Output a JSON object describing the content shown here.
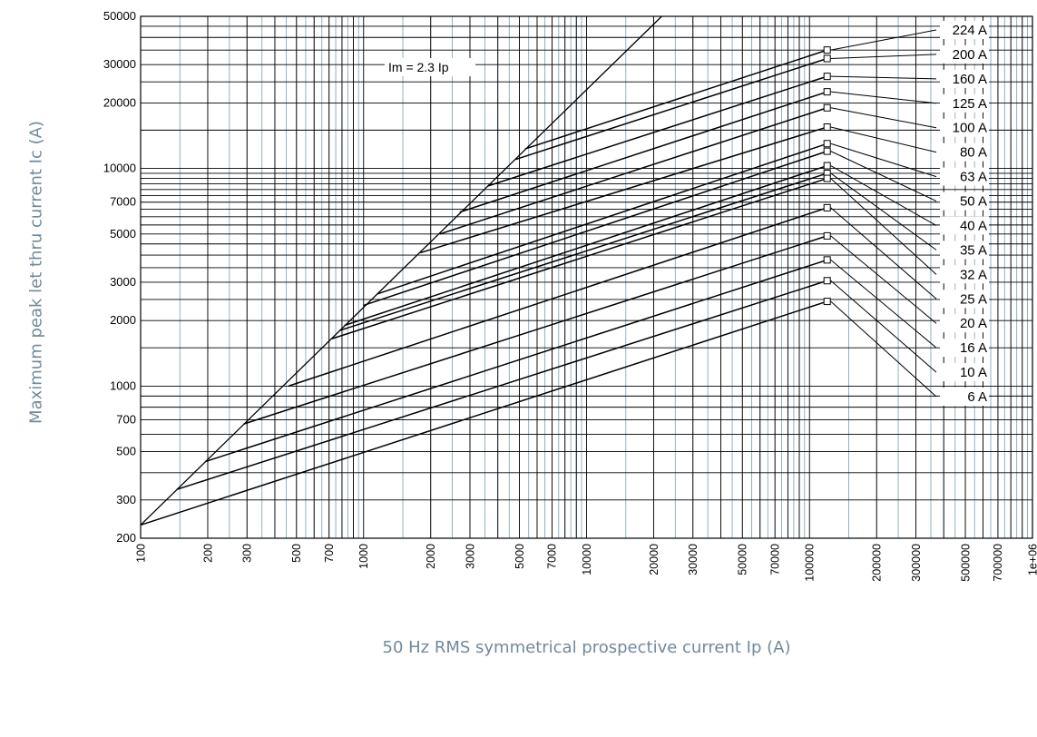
{
  "chart_data": {
    "type": "line",
    "title": "",
    "xlabel": "50 Hz RMS symmetrical prospective current Ip (A)",
    "ylabel": "Maximum peak let thru current Ic (A)",
    "x_scale": "log",
    "y_scale": "log",
    "xlim": [
      100,
      1000000
    ],
    "ylim": [
      200,
      50000
    ],
    "x_tick_labels": [
      "100",
      "200",
      "300",
      "500",
      "700",
      "1000",
      "2000",
      "3000",
      "5000",
      "7000",
      "10000",
      "20000",
      "30000",
      "50000",
      "70000",
      "100000",
      "200000",
      "300000",
      "500000",
      "700000",
      "1e+06"
    ],
    "y_tick_labels": [
      "200",
      "300",
      "500",
      "700",
      "1000",
      "2000",
      "3000",
      "5000",
      "7000",
      "10000",
      "20000",
      "30000",
      "50000"
    ],
    "grid": true,
    "reference_line": {
      "label": "Im = 2.3 Ip",
      "factor": 2.3
    },
    "series": [
      {
        "name": "224 A",
        "x": [
          5300,
          120000
        ],
        "y": [
          12300,
          35000
        ]
      },
      {
        "name": "200 A",
        "x": [
          4800,
          120000
        ],
        "y": [
          11000,
          32000
        ]
      },
      {
        "name": "160 A",
        "x": [
          3600,
          120000
        ],
        "y": [
          8300,
          26500
        ]
      },
      {
        "name": "125 A",
        "x": [
          2700,
          120000
        ],
        "y": [
          6300,
          22500
        ]
      },
      {
        "name": "100 A",
        "x": [
          2200,
          120000
        ],
        "y": [
          5000,
          19000
        ]
      },
      {
        "name": "80 A",
        "x": [
          1800,
          120000
        ],
        "y": [
          4100,
          15500
        ]
      },
      {
        "name": "63 A",
        "x": [
          1150,
          120000
        ],
        "y": [
          2650,
          13000
        ]
      },
      {
        "name": "50 A",
        "x": [
          1000,
          120000
        ],
        "y": [
          2350,
          12000
        ]
      },
      {
        "name": "40 A",
        "x": [
          820,
          120000
        ],
        "y": [
          1900,
          10300
        ]
      },
      {
        "name": "35 A",
        "x": [
          780,
          120000
        ],
        "y": [
          1800,
          9500
        ]
      },
      {
        "name": "32 A",
        "x": [
          720,
          120000
        ],
        "y": [
          1650,
          9000
        ]
      },
      {
        "name": "25 A",
        "x": [
          460,
          120000
        ],
        "y": [
          1000,
          6600
        ]
      },
      {
        "name": "20 A",
        "x": [
          290,
          120000
        ],
        "y": [
          670,
          4900
        ]
      },
      {
        "name": "16 A",
        "x": [
          195,
          120000
        ],
        "y": [
          450,
          3800
        ]
      },
      {
        "name": "10 A",
        "x": [
          145,
          120000
        ],
        "y": [
          335,
          3050
        ]
      },
      {
        "name": "6 A",
        "x": [
          100,
          120000
        ],
        "y": [
          230,
          2450
        ]
      }
    ]
  }
}
